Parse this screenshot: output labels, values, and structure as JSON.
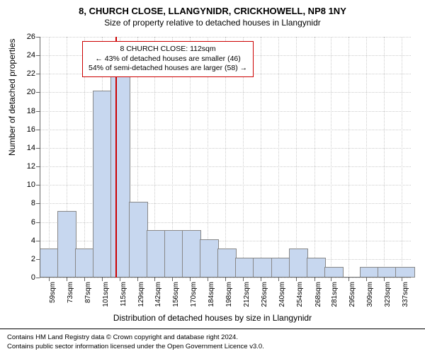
{
  "title": "8, CHURCH CLOSE, LLANGYNIDR, CRICKHOWELL, NP8 1NY",
  "subtitle": "Size of property relative to detached houses in Llangynidr",
  "ylabel": "Number of detached properties",
  "xlabel": "Distribution of detached houses by size in Llangynidr",
  "footer_line1": "Contains HM Land Registry data © Crown copyright and database right 2024.",
  "footer_line2": "Contains public sector information licensed under the Open Government Licence v3.0.",
  "annotation": {
    "line1": "8 CHURCH CLOSE: 112sqm",
    "line2": "← 43% of detached houses are smaller (46)",
    "line3": "54% of semi-detached houses are larger (58) →",
    "border_color": "#cc0000"
  },
  "chart": {
    "ylim": [
      0,
      26
    ],
    "ytick_step": 2,
    "xticks": [
      59,
      73,
      87,
      101,
      115,
      129,
      142,
      156,
      170,
      184,
      198,
      212,
      226,
      240,
      254,
      268,
      281,
      295,
      309,
      323,
      337
    ],
    "x_suffix": "sqm",
    "x_range": [
      52,
      344
    ],
    "bars": {
      "width_units": 14,
      "starts": [
        52,
        66,
        80,
        94,
        108,
        122,
        136,
        150,
        164,
        178,
        192,
        206,
        220,
        234,
        248,
        262,
        276,
        290,
        304,
        318,
        332
      ],
      "heights": [
        3,
        7,
        3,
        20,
        22,
        8,
        5,
        5,
        5,
        4,
        3,
        2,
        2,
        2,
        3,
        2,
        1,
        0,
        1,
        1,
        1
      ],
      "fill_color": "#c7d7ef",
      "border_color": "#888888"
    },
    "grid_color": "#cccccc",
    "axis_color": "#666666",
    "marker": {
      "x_value": 112,
      "color": "#cc0000"
    },
    "background_color": "#ffffff",
    "tick_fontsize": 11,
    "label_fontsize": 12
  }
}
